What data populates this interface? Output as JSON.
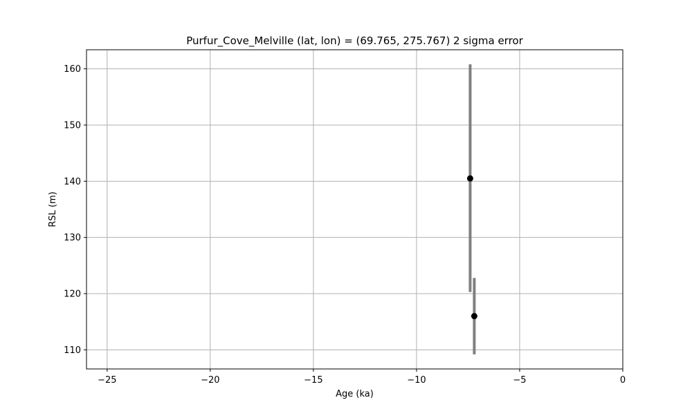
{
  "chart_data": {
    "type": "scatter",
    "title": "Purfur_Cove_Melville (lat, lon) = (69.765, 275.767)  2 sigma error",
    "xlabel": "Age (ka)",
    "ylabel": "RSL (m)",
    "xlim": [
      -26.0,
      0.0
    ],
    "ylim": [
      106.6,
      163.4
    ],
    "xticks": [
      -25,
      -20,
      -15,
      -10,
      -5,
      0
    ],
    "xtick_labels": [
      "−25",
      "−20",
      "−15",
      "−10",
      "−5",
      "0"
    ],
    "yticks": [
      110,
      120,
      130,
      140,
      150,
      160
    ],
    "ytick_labels": [
      "110",
      "120",
      "130",
      "140",
      "150",
      "160"
    ],
    "grid": true,
    "legend": "none",
    "points": [
      {
        "x": -7.4,
        "y": 140.5,
        "y_low": 120.3,
        "y_high": 160.8
      },
      {
        "x": -7.2,
        "y": 116.0,
        "y_low": 109.2,
        "y_high": 122.8
      }
    ],
    "colors": {
      "marker": "#000000",
      "errorbar": "#808080",
      "grid": "#b0b0b0",
      "axes": "#000000"
    }
  }
}
